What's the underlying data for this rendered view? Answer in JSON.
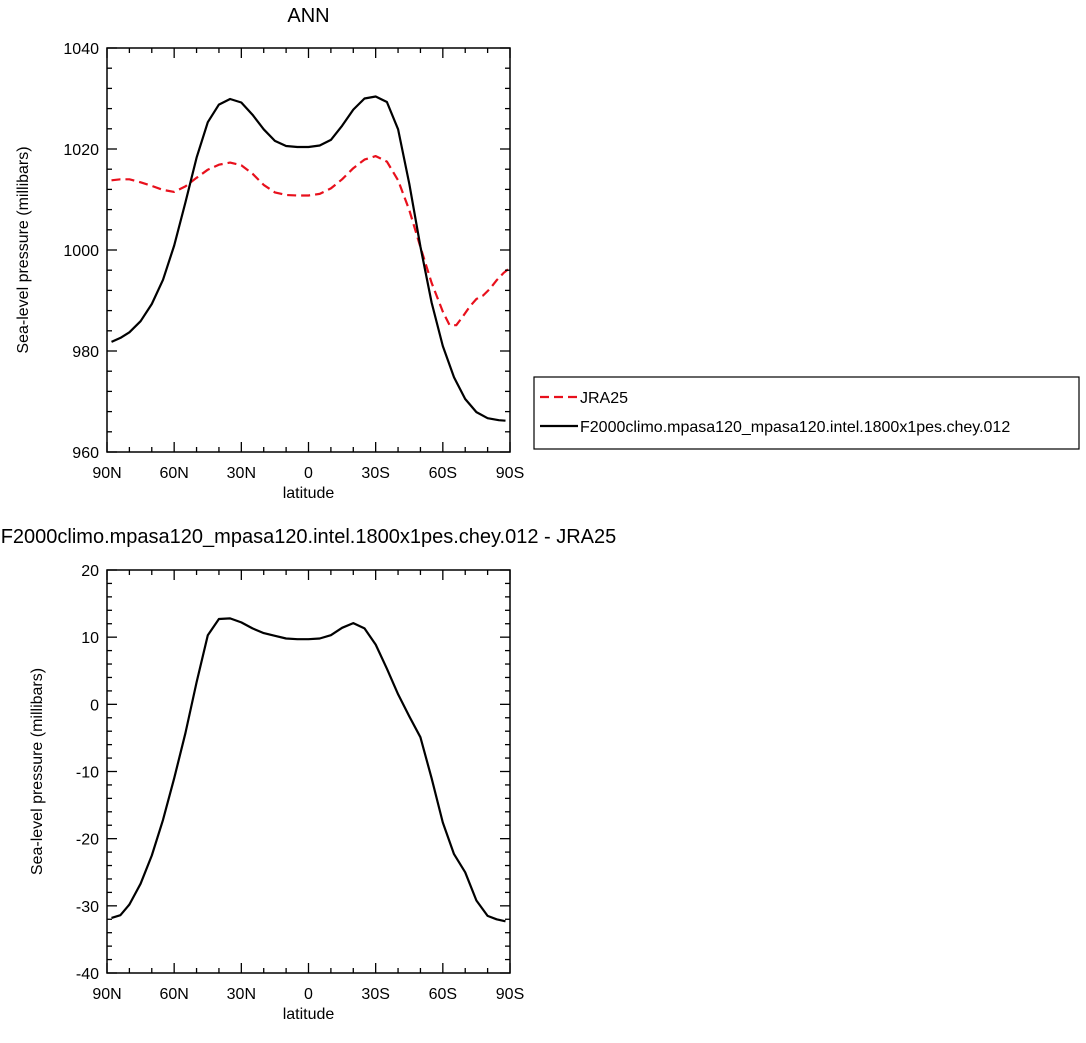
{
  "chart_data": [
    {
      "type": "line",
      "title": "ANN",
      "xlabel": "latitude",
      "ylabel": "Sea-level pressure (millibars)",
      "xlim": [
        90,
        -90
      ],
      "ylim": [
        960,
        1040
      ],
      "xticks": [
        {
          "value": 90,
          "label": "90N"
        },
        {
          "value": 60,
          "label": "60N"
        },
        {
          "value": 30,
          "label": "30N"
        },
        {
          "value": 0,
          "label": "0"
        },
        {
          "value": -30,
          "label": "30S"
        },
        {
          "value": -60,
          "label": "60S"
        },
        {
          "value": -90,
          "label": "90S"
        }
      ],
      "yticks": [
        960,
        980,
        1000,
        1020,
        1040
      ],
      "legend_position": "right",
      "series": [
        {
          "name": "JRA25",
          "color": "#e8101c",
          "dash": "dashed",
          "x": [
            88,
            84,
            80,
            75,
            70,
            65,
            60,
            55,
            50,
            45,
            40,
            35,
            30,
            25,
            20,
            15,
            10,
            5,
            0,
            -5,
            -10,
            -15,
            -20,
            -25,
            -30,
            -35,
            -40,
            -45,
            -50,
            -55,
            -60,
            -63,
            -66,
            -69,
            -72,
            -75,
            -78,
            -81,
            -84,
            -87,
            -90
          ],
          "y": [
            1013.8,
            1014.0,
            1014.0,
            1013.4,
            1012.7,
            1011.9,
            1011.5,
            1012.6,
            1014.3,
            1015.9,
            1016.9,
            1017.3,
            1016.8,
            1015.1,
            1012.9,
            1011.4,
            1010.9,
            1010.8,
            1010.8,
            1011.1,
            1012.2,
            1014.0,
            1016.2,
            1017.9,
            1018.6,
            1017.5,
            1013.8,
            1007.9,
            1000.6,
            993.5,
            987.8,
            985.1,
            985.1,
            986.9,
            988.8,
            990.3,
            991.0,
            992.3,
            994.0,
            995.4,
            996.5
          ]
        },
        {
          "name": "F2000climo.mpasa120_mpasa120.intel.1800x1pes.chey.012",
          "color": "#000000",
          "dash": "solid",
          "x": [
            88,
            84,
            80,
            75,
            70,
            65,
            60,
            55,
            50,
            45,
            40,
            35,
            30,
            25,
            20,
            15,
            10,
            5,
            0,
            -5,
            -10,
            -15,
            -20,
            -25,
            -30,
            -35,
            -40,
            -45,
            -50,
            -55,
            -60,
            -65,
            -70,
            -75,
            -80,
            -85,
            -88
          ],
          "y": [
            981.8,
            982.6,
            983.7,
            985.9,
            989.3,
            994.1,
            1000.9,
            1009.4,
            1018.3,
            1025.3,
            1028.8,
            1029.9,
            1029.2,
            1026.8,
            1023.9,
            1021.6,
            1020.6,
            1020.4,
            1020.4,
            1020.7,
            1021.8,
            1024.6,
            1027.8,
            1030.0,
            1030.4,
            1029.3,
            1023.9,
            1013.1,
            1000.7,
            989.6,
            981.0,
            974.8,
            970.5,
            967.9,
            966.7,
            966.3,
            966.2
          ]
        }
      ]
    },
    {
      "type": "line",
      "title": "F2000climo.mpasa120_mpasa120.intel.1800x1pes.chey.012 - JRA25",
      "xlabel": "latitude",
      "ylabel": "Sea-level pressure (millibars)",
      "xlim": [
        90,
        -90
      ],
      "ylim": [
        -40,
        20
      ],
      "xticks": [
        {
          "value": 90,
          "label": "90N"
        },
        {
          "value": 60,
          "label": "60N"
        },
        {
          "value": 30,
          "label": "30N"
        },
        {
          "value": 0,
          "label": "0"
        },
        {
          "value": -30,
          "label": "30S"
        },
        {
          "value": -60,
          "label": "60S"
        },
        {
          "value": -90,
          "label": "90S"
        }
      ],
      "yticks": [
        -40,
        -30,
        -20,
        -10,
        0,
        10,
        20
      ],
      "series": [
        {
          "color": "#000000",
          "dash": "solid",
          "x": [
            88,
            84,
            80,
            75,
            70,
            65,
            60,
            55,
            50,
            45,
            40,
            35,
            30,
            25,
            20,
            15,
            10,
            5,
            0,
            -5,
            -10,
            -15,
            -20,
            -25,
            -30,
            -35,
            -40,
            -45,
            -50,
            -55,
            -60,
            -65,
            -70,
            -75,
            -80,
            -84,
            -88
          ],
          "y": [
            -31.8,
            -31.4,
            -29.8,
            -26.7,
            -22.5,
            -17.2,
            -11.0,
            -4.3,
            3.3,
            10.3,
            12.7,
            12.8,
            12.2,
            11.3,
            10.6,
            10.2,
            9.8,
            9.7,
            9.7,
            9.8,
            10.3,
            11.4,
            12.1,
            11.3,
            8.9,
            5.3,
            1.5,
            -1.8,
            -4.9,
            -11.0,
            -17.6,
            -22.3,
            -25.0,
            -29.2,
            -31.5,
            -32.0,
            -32.3
          ]
        }
      ]
    }
  ]
}
